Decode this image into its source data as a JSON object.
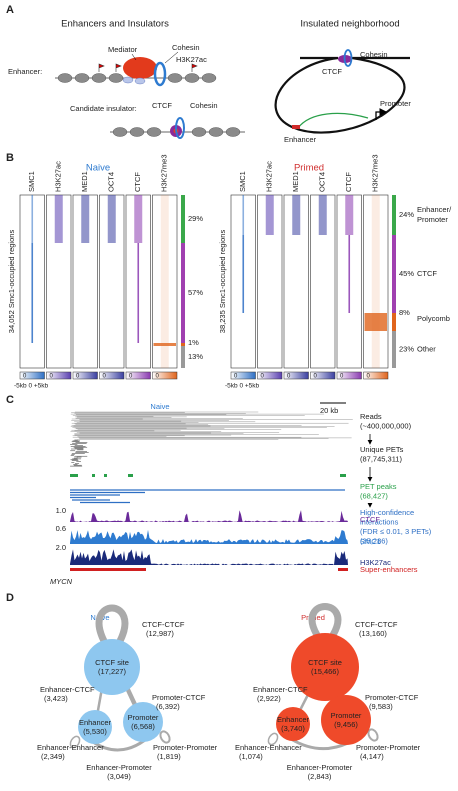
{
  "panel_a": {
    "label": "A",
    "left_title": "Enhancers and Insulators",
    "right_title": "Insulated neighborhood",
    "enhancer_label": "Enhancer:",
    "mediator": "Mediator",
    "cohesin": "Cohesin",
    "h3k27ac": "H3K27ac",
    "insulator_label": "Candidate insulator:",
    "insulator_ctcf": "CTCF",
    "insulator_cohesin": "Cohesin",
    "loop_ctcf": "CTCF",
    "loop_cohesin": "Cohesin",
    "promoter": "Promoter",
    "enhancer": "Enhancer"
  },
  "panel_b": {
    "label": "B",
    "columns": [
      "SMC1",
      "H3K27ac",
      "MED1",
      "OCT4",
      "CTCF",
      "H3K27me3"
    ],
    "colorbar_min": "0",
    "axis": "-5kb 0 +5kb",
    "heatmaps": [
      {
        "title": "Naive",
        "regions": "34,052 Smc1-occupied regions",
        "fractions": [
          "29%",
          "57%",
          "1%",
          "13%"
        ]
      },
      {
        "title": "Primed",
        "regions": "38,235 Smc1-occupied regions",
        "fractions": [
          "24%",
          "45%",
          "8%",
          "23%"
        ],
        "classes": [
          [
            "Enhancer/",
            "Promoter"
          ],
          [
            "CTCF"
          ],
          [
            "Polycomb"
          ],
          [
            "Other"
          ]
        ]
      }
    ]
  },
  "panel_c": {
    "label": "C",
    "title": "Naive",
    "scale": "20 kb",
    "steps": [
      [
        "Reads",
        "(~400,000,000)"
      ],
      [
        "Unique PETs",
        "(87,745,311)"
      ],
      [
        "PET peaks",
        "(68,427)"
      ],
      [
        "High-confidence",
        "interactions",
        "(FDR ≤ 0.01, 3 PETs)",
        "(35,286)"
      ]
    ],
    "tracks": [
      {
        "name": "CTCF",
        "max": "1.0"
      },
      {
        "name": "SMC1",
        "max": "0.6"
      },
      {
        "name": "H3K27ac",
        "max": "2.0"
      }
    ],
    "super_enhancers": "Super-enhancers",
    "gene": "MYCN"
  },
  "panel_d": {
    "label": "D",
    "networks": [
      {
        "title": "Naive",
        "nodes": [
          {
            "label": "CTCF site",
            "count": "(17,227)"
          },
          {
            "label": "Enhancer",
            "count": "(5,530)"
          },
          {
            "label": "Promoter",
            "count": "(6,568)"
          }
        ],
        "edges": [
          {
            "label": "CTCF-CTCF",
            "count": "(12,987)"
          },
          {
            "label": "Enhancer-CTCF",
            "count": "(3,423)"
          },
          {
            "label": "Promoter-CTCF",
            "count": "(6,392)"
          },
          {
            "label": "Enhancer-Enhancer",
            "count": "(2,349)"
          },
          {
            "label": "Promoter-Promoter",
            "count": "(1,819)"
          },
          {
            "label": "Enhancer-Promoter",
            "count": "(3,049)"
          }
        ]
      },
      {
        "title": "Primed",
        "nodes": [
          {
            "label": "CTCF site",
            "count": "(15,466)"
          },
          {
            "label": "Enhancer",
            "count": "(3,740)"
          },
          {
            "label": "Promoter",
            "count": "(9,456)"
          }
        ],
        "edges": [
          {
            "label": "CTCF-CTCF",
            "count": "(13,160)"
          },
          {
            "label": "Enhancer-CTCF",
            "count": "(2,922)"
          },
          {
            "label": "Promoter-CTCF",
            "count": "(9,583)"
          },
          {
            "label": "Enhancer-Enhancer",
            "count": "(1,074)"
          },
          {
            "label": "Promoter-Promoter",
            "count": "(4,147)"
          },
          {
            "label": "Enhancer-Promoter",
            "count": "(2,843)"
          }
        ]
      }
    ]
  }
}
